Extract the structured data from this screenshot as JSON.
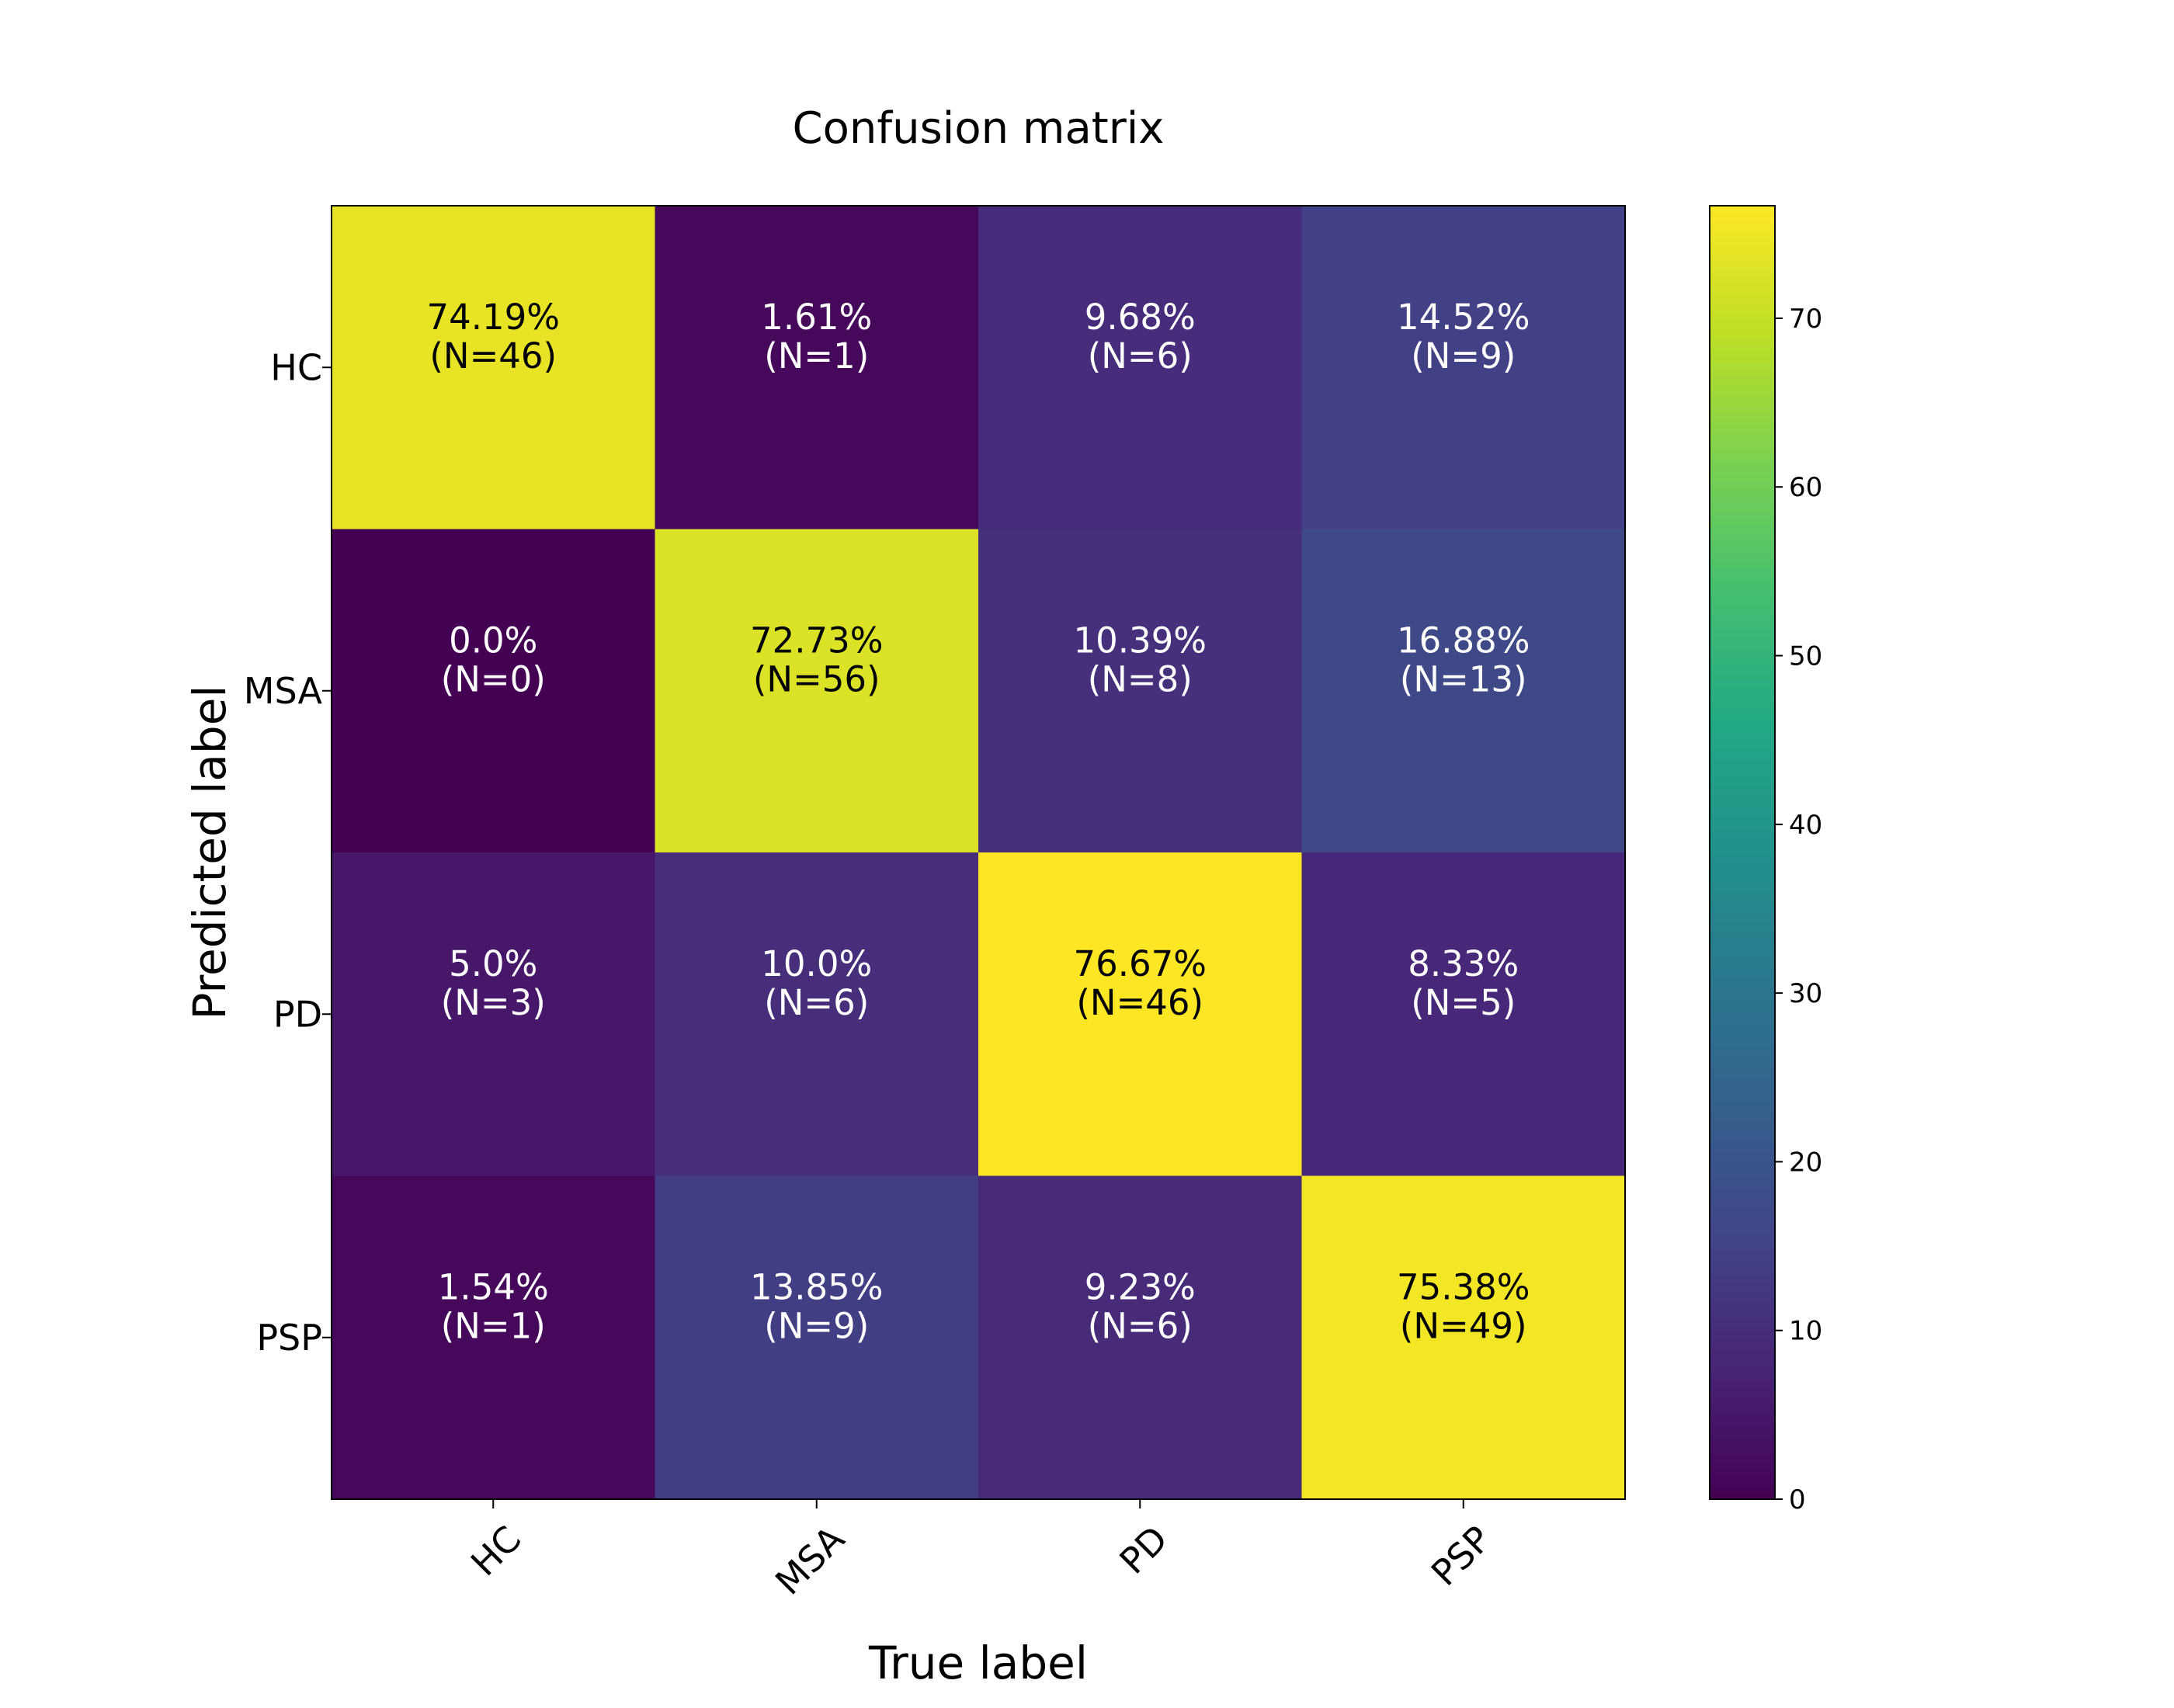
{
  "chart_data": {
    "type": "heatmap",
    "title": "Confusion matrix",
    "xlabel": "True label",
    "ylabel": "Predicted label",
    "x_categories": [
      "HC",
      "MSA",
      "PD",
      "PSP"
    ],
    "y_categories": [
      "HC",
      "MSA",
      "PD",
      "PSP"
    ],
    "values": [
      [
        74.19,
        1.61,
        9.68,
        14.52
      ],
      [
        0.0,
        72.73,
        10.39,
        16.88
      ],
      [
        5.0,
        10.0,
        76.67,
        8.33
      ],
      [
        1.54,
        13.85,
        9.23,
        75.38
      ]
    ],
    "counts": [
      [
        46,
        1,
        6,
        9
      ],
      [
        0,
        56,
        8,
        13
      ],
      [
        3,
        6,
        46,
        5
      ],
      [
        1,
        9,
        6,
        49
      ]
    ],
    "cell_labels": [
      [
        [
          "74.19%",
          "(N=46)"
        ],
        [
          "1.61%",
          "(N=1)"
        ],
        [
          "9.68%",
          "(N=6)"
        ],
        [
          "14.52%",
          "(N=9)"
        ]
      ],
      [
        [
          "0.0%",
          "(N=0)"
        ],
        [
          "72.73%",
          "(N=56)"
        ],
        [
          "10.39%",
          "(N=8)"
        ],
        [
          "16.88%",
          "(N=13)"
        ]
      ],
      [
        [
          "5.0%",
          "(N=3)"
        ],
        [
          "10.0%",
          "(N=6)"
        ],
        [
          "76.67%",
          "(N=46)"
        ],
        [
          "8.33%",
          "(N=5)"
        ]
      ],
      [
        [
          "1.54%",
          "(N=1)"
        ],
        [
          "13.85%",
          "(N=9)"
        ],
        [
          "9.23%",
          "(N=6)"
        ],
        [
          "75.38%",
          "(N=49)"
        ]
      ]
    ],
    "colormap": "viridis",
    "colorbar": {
      "range": [
        0,
        76.67
      ],
      "ticks": [
        0,
        10,
        20,
        30,
        40,
        50,
        60,
        70
      ],
      "tick_labels": [
        "0",
        "10",
        "20",
        "30",
        "40",
        "50",
        "60",
        "70"
      ]
    },
    "text_colors": {
      "dark": "#000000",
      "light": "#ffffff"
    },
    "grid": false
  }
}
